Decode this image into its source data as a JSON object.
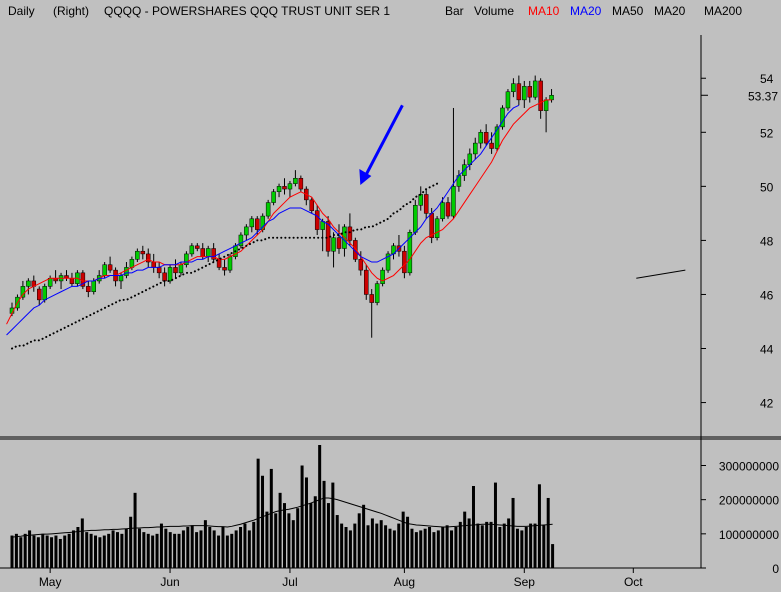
{
  "header": {
    "period": "Daily",
    "scale": "(Right)",
    "ticker": "QQQQ - POWERSHARES QQQ TRUST UNIT SER 1",
    "chart_kind": "Bar",
    "volume": "Volume",
    "studies": [
      {
        "label": "MA10",
        "color": "#ff0000"
      },
      {
        "label": "MA20",
        "color": "#0000ff"
      },
      {
        "label": "MA50",
        "color": "#000000"
      },
      {
        "label": "MA20",
        "color": "#000000"
      },
      {
        "label": "MA200",
        "color": "#000000"
      }
    ]
  },
  "colors": {
    "up": "#00cc00",
    "down": "#cc0000",
    "ma10": "#ff0000",
    "ma20": "#0000ff",
    "ma50": "#000000",
    "arrow": "#0000ff"
  },
  "chart_data": [
    {
      "type": "candlestick",
      "name": "price",
      "y_axis": {
        "ticks": [
          42,
          44,
          46,
          48,
          50,
          52,
          54
        ],
        "range": [
          40.8,
          55.6
        ],
        "last_label": "53.37"
      },
      "x_axis": {
        "labels": [
          {
            "text": "May",
            "idx": 7
          },
          {
            "text": "Jun",
            "idx": 29
          },
          {
            "text": "Jul",
            "idx": 51
          },
          {
            "text": "Aug",
            "idx": 72
          },
          {
            "text": "Sep",
            "idx": 94
          },
          {
            "text": "Oct",
            "idx": 114
          }
        ]
      },
      "candles": [
        {
          "o": 45.3,
          "h": 45.7,
          "l": 45.2,
          "c": 45.5
        },
        {
          "o": 45.5,
          "h": 46.0,
          "l": 45.4,
          "c": 45.9
        },
        {
          "o": 45.9,
          "h": 46.5,
          "l": 45.8,
          "c": 46.3
        },
        {
          "o": 46.3,
          "h": 46.6,
          "l": 46.0,
          "c": 46.5
        },
        {
          "o": 46.5,
          "h": 46.7,
          "l": 46.1,
          "c": 46.3
        },
        {
          "o": 46.2,
          "h": 46.3,
          "l": 45.6,
          "c": 45.8
        },
        {
          "o": 45.8,
          "h": 46.4,
          "l": 45.7,
          "c": 46.3
        },
        {
          "o": 46.3,
          "h": 46.7,
          "l": 46.2,
          "c": 46.6
        },
        {
          "o": 46.6,
          "h": 46.9,
          "l": 46.4,
          "c": 46.5
        },
        {
          "o": 46.5,
          "h": 46.8,
          "l": 46.2,
          "c": 46.7
        },
        {
          "o": 46.7,
          "h": 46.9,
          "l": 46.5,
          "c": 46.6
        },
        {
          "o": 46.6,
          "h": 46.8,
          "l": 46.3,
          "c": 46.4
        },
        {
          "o": 46.4,
          "h": 46.9,
          "l": 46.3,
          "c": 46.8
        },
        {
          "o": 46.8,
          "h": 46.9,
          "l": 46.2,
          "c": 46.3
        },
        {
          "o": 46.3,
          "h": 46.5,
          "l": 45.9,
          "c": 46.1
        },
        {
          "o": 46.1,
          "h": 46.6,
          "l": 46.0,
          "c": 46.5
        },
        {
          "o": 46.5,
          "h": 46.9,
          "l": 46.4,
          "c": 46.7
        },
        {
          "o": 46.7,
          "h": 47.2,
          "l": 46.6,
          "c": 47.1
        },
        {
          "o": 47.1,
          "h": 47.4,
          "l": 46.8,
          "c": 46.9
        },
        {
          "o": 46.9,
          "h": 47.0,
          "l": 46.3,
          "c": 46.5
        },
        {
          "o": 46.5,
          "h": 46.8,
          "l": 46.2,
          "c": 46.7
        },
        {
          "o": 46.7,
          "h": 47.2,
          "l": 46.6,
          "c": 47.0
        },
        {
          "o": 47.0,
          "h": 47.4,
          "l": 46.9,
          "c": 47.3
        },
        {
          "o": 47.3,
          "h": 47.7,
          "l": 47.2,
          "c": 47.6
        },
        {
          "o": 47.6,
          "h": 47.8,
          "l": 47.3,
          "c": 47.5
        },
        {
          "o": 47.5,
          "h": 47.7,
          "l": 47.0,
          "c": 47.2
        },
        {
          "o": 47.2,
          "h": 47.5,
          "l": 46.8,
          "c": 47.0
        },
        {
          "o": 47.0,
          "h": 47.2,
          "l": 46.6,
          "c": 46.8
        },
        {
          "o": 46.8,
          "h": 47.0,
          "l": 46.3,
          "c": 46.5
        },
        {
          "o": 46.5,
          "h": 47.1,
          "l": 46.4,
          "c": 47.0
        },
        {
          "o": 47.0,
          "h": 47.3,
          "l": 46.6,
          "c": 46.8
        },
        {
          "o": 46.8,
          "h": 47.2,
          "l": 46.7,
          "c": 47.1
        },
        {
          "o": 47.1,
          "h": 47.6,
          "l": 47.0,
          "c": 47.5
        },
        {
          "o": 47.5,
          "h": 47.9,
          "l": 47.4,
          "c": 47.8
        },
        {
          "o": 47.8,
          "h": 47.9,
          "l": 47.6,
          "c": 47.7
        },
        {
          "o": 47.7,
          "h": 47.9,
          "l": 47.3,
          "c": 47.4
        },
        {
          "o": 47.4,
          "h": 47.8,
          "l": 47.2,
          "c": 47.7
        },
        {
          "o": 47.7,
          "h": 47.9,
          "l": 47.2,
          "c": 47.3
        },
        {
          "o": 47.3,
          "h": 47.5,
          "l": 46.9,
          "c": 47.0
        },
        {
          "o": 47.0,
          "h": 47.3,
          "l": 46.7,
          "c": 46.9
        },
        {
          "o": 46.9,
          "h": 47.5,
          "l": 46.8,
          "c": 47.4
        },
        {
          "o": 47.4,
          "h": 47.9,
          "l": 47.3,
          "c": 47.8
        },
        {
          "o": 47.8,
          "h": 48.3,
          "l": 47.7,
          "c": 48.2
        },
        {
          "o": 48.2,
          "h": 48.6,
          "l": 48.0,
          "c": 48.5
        },
        {
          "o": 48.5,
          "h": 48.9,
          "l": 48.3,
          "c": 48.8
        },
        {
          "o": 48.8,
          "h": 48.9,
          "l": 48.2,
          "c": 48.4
        },
        {
          "o": 48.4,
          "h": 49.0,
          "l": 48.3,
          "c": 48.9
        },
        {
          "o": 48.9,
          "h": 49.5,
          "l": 48.8,
          "c": 49.4
        },
        {
          "o": 49.4,
          "h": 49.9,
          "l": 49.3,
          "c": 49.8
        },
        {
          "o": 49.8,
          "h": 50.1,
          "l": 49.6,
          "c": 50.0
        },
        {
          "o": 50.0,
          "h": 50.3,
          "l": 49.7,
          "c": 49.9
        },
        {
          "o": 49.9,
          "h": 50.2,
          "l": 49.6,
          "c": 50.1
        },
        {
          "o": 50.1,
          "h": 50.6,
          "l": 50.0,
          "c": 50.3
        },
        {
          "o": 50.3,
          "h": 50.4,
          "l": 49.8,
          "c": 49.9
        },
        {
          "o": 49.9,
          "h": 50.0,
          "l": 49.3,
          "c": 49.5
        },
        {
          "o": 49.5,
          "h": 49.6,
          "l": 49.0,
          "c": 49.1
        },
        {
          "o": 49.1,
          "h": 49.3,
          "l": 48.2,
          "c": 48.4
        },
        {
          "o": 48.4,
          "h": 48.8,
          "l": 47.6,
          "c": 48.7
        },
        {
          "o": 48.7,
          "h": 48.9,
          "l": 47.4,
          "c": 47.6
        },
        {
          "o": 47.6,
          "h": 48.3,
          "l": 47.0,
          "c": 48.1
        },
        {
          "o": 48.1,
          "h": 48.6,
          "l": 47.5,
          "c": 47.7
        },
        {
          "o": 47.7,
          "h": 48.6,
          "l": 47.4,
          "c": 48.5
        },
        {
          "o": 48.5,
          "h": 49.0,
          "l": 47.8,
          "c": 48.0
        },
        {
          "o": 48.0,
          "h": 48.1,
          "l": 47.2,
          "c": 47.3
        },
        {
          "o": 47.3,
          "h": 47.6,
          "l": 46.7,
          "c": 46.9
        },
        {
          "o": 46.9,
          "h": 47.1,
          "l": 45.8,
          "c": 46.0
        },
        {
          "o": 46.0,
          "h": 46.2,
          "l": 44.4,
          "c": 45.7
        },
        {
          "o": 45.7,
          "h": 46.5,
          "l": 45.6,
          "c": 46.4
        },
        {
          "o": 46.4,
          "h": 47.0,
          "l": 46.3,
          "c": 46.9
        },
        {
          "o": 46.9,
          "h": 47.6,
          "l": 46.8,
          "c": 47.5
        },
        {
          "o": 47.5,
          "h": 47.9,
          "l": 47.3,
          "c": 47.8
        },
        {
          "o": 47.8,
          "h": 48.2,
          "l": 47.4,
          "c": 47.6
        },
        {
          "o": 47.6,
          "h": 47.8,
          "l": 46.6,
          "c": 46.8
        },
        {
          "o": 46.8,
          "h": 48.4,
          "l": 46.7,
          "c": 48.3
        },
        {
          "o": 48.3,
          "h": 49.5,
          "l": 48.2,
          "c": 49.3
        },
        {
          "o": 49.3,
          "h": 50.0,
          "l": 49.1,
          "c": 49.7
        },
        {
          "o": 49.7,
          "h": 49.9,
          "l": 48.8,
          "c": 49.0
        },
        {
          "o": 49.0,
          "h": 49.2,
          "l": 47.9,
          "c": 48.1
        },
        {
          "o": 48.1,
          "h": 48.9,
          "l": 48.0,
          "c": 48.8
        },
        {
          "o": 48.8,
          "h": 49.6,
          "l": 48.7,
          "c": 49.4
        },
        {
          "o": 49.4,
          "h": 49.6,
          "l": 48.8,
          "c": 48.9
        },
        {
          "o": 48.9,
          "h": 52.9,
          "l": 48.8,
          "c": 50.0
        },
        {
          "o": 50.0,
          "h": 50.6,
          "l": 49.8,
          "c": 50.4
        },
        {
          "o": 50.4,
          "h": 51.0,
          "l": 50.2,
          "c": 50.8
        },
        {
          "o": 50.8,
          "h": 51.4,
          "l": 50.6,
          "c": 51.2
        },
        {
          "o": 51.2,
          "h": 51.8,
          "l": 51.0,
          "c": 51.6
        },
        {
          "o": 51.6,
          "h": 52.1,
          "l": 51.4,
          "c": 52.0
        },
        {
          "o": 52.0,
          "h": 52.3,
          "l": 51.5,
          "c": 51.6
        },
        {
          "o": 51.6,
          "h": 52.0,
          "l": 51.2,
          "c": 51.4
        },
        {
          "o": 51.4,
          "h": 52.3,
          "l": 51.3,
          "c": 52.2
        },
        {
          "o": 52.2,
          "h": 53.0,
          "l": 52.1,
          "c": 52.9
        },
        {
          "o": 52.9,
          "h": 53.6,
          "l": 52.8,
          "c": 53.5
        },
        {
          "o": 53.5,
          "h": 54.0,
          "l": 53.3,
          "c": 53.8
        },
        {
          "o": 53.8,
          "h": 54.1,
          "l": 53.0,
          "c": 53.2
        },
        {
          "o": 53.2,
          "h": 53.9,
          "l": 52.9,
          "c": 53.7
        },
        {
          "o": 53.7,
          "h": 53.9,
          "l": 53.1,
          "c": 53.3
        },
        {
          "o": 53.3,
          "h": 54.1,
          "l": 53.2,
          "c": 53.9
        },
        {
          "o": 53.9,
          "h": 54.0,
          "l": 52.5,
          "c": 52.8
        },
        {
          "o": 52.8,
          "h": 53.3,
          "l": 52.0,
          "c": 53.2
        },
        {
          "o": 53.2,
          "h": 53.6,
          "l": 53.1,
          "c": 53.37
        }
      ],
      "ma10": [
        44.9,
        45.3,
        45.7,
        46.0,
        46.2,
        46.3,
        46.4,
        46.5,
        46.6,
        46.6,
        46.6,
        46.6,
        46.6,
        46.6,
        46.5,
        46.5,
        46.5,
        46.6,
        46.7,
        46.7,
        46.7,
        46.8,
        46.9,
        47.0,
        47.1,
        47.2,
        47.3,
        47.2,
        47.2,
        47.1,
        47.1,
        47.1,
        47.1,
        47.2,
        47.3,
        47.4,
        47.4,
        47.4,
        47.4,
        47.3,
        47.3,
        47.4,
        47.5,
        47.6,
        47.8,
        48.0,
        48.2,
        48.4,
        48.7,
        49.0,
        49.2,
        49.4,
        49.6,
        49.7,
        49.8,
        49.7,
        49.6,
        49.3,
        49.0,
        48.8,
        48.5,
        48.3,
        48.1,
        47.9,
        47.7,
        47.4,
        47.1,
        46.8,
        46.6,
        46.5,
        46.6,
        46.7,
        46.9,
        47.1,
        47.3,
        47.6,
        47.9,
        48.1,
        48.2,
        48.3,
        48.4,
        48.6,
        48.8,
        49.1,
        49.4,
        49.7,
        50.0,
        50.3,
        50.6,
        50.9,
        51.3,
        51.7,
        52.0,
        52.3,
        52.5,
        52.7,
        52.9,
        53.0,
        53.1,
        53.2,
        53.2
      ],
      "ma20": [
        44.5,
        44.7,
        44.9,
        45.1,
        45.3,
        45.5,
        45.6,
        45.8,
        45.9,
        46.0,
        46.1,
        46.2,
        46.3,
        46.3,
        46.4,
        46.5,
        46.5,
        46.6,
        46.6,
        46.7,
        46.7,
        46.7,
        46.8,
        46.8,
        46.9,
        46.9,
        47.0,
        47.0,
        47.0,
        47.1,
        47.1,
        47.1,
        47.2,
        47.2,
        47.2,
        47.3,
        47.3,
        47.4,
        47.4,
        47.5,
        47.6,
        47.7,
        47.8,
        47.9,
        48.0,
        48.1,
        48.3,
        48.5,
        48.7,
        48.8,
        49.0,
        49.1,
        49.2,
        49.2,
        49.2,
        49.1,
        49.0,
        48.9,
        48.7,
        48.6,
        48.4,
        48.2,
        48.0,
        47.8,
        47.6,
        47.4,
        47.3,
        47.2,
        47.2,
        47.3,
        47.4,
        47.5,
        47.7,
        47.9,
        48.1,
        48.3,
        48.5,
        48.8,
        49.0,
        49.2,
        49.5,
        49.8,
        50.1,
        50.4,
        50.6,
        50.8,
        51.0,
        51.2,
        51.5,
        51.8,
        52.1,
        52.4,
        52.7,
        52.9,
        53.0
      ],
      "ma50": [
        44.0,
        44.1,
        44.1,
        44.2,
        44.3,
        44.3,
        44.4,
        44.5,
        44.6,
        44.7,
        44.8,
        44.9,
        45.0,
        45.1,
        45.2,
        45.3,
        45.4,
        45.5,
        45.6,
        45.7,
        45.8,
        45.8,
        45.9,
        46.0,
        46.1,
        46.2,
        46.3,
        46.4,
        46.5,
        46.5,
        46.6,
        46.7,
        46.8,
        46.8,
        46.9,
        47.0,
        47.1,
        47.2,
        47.3,
        47.4,
        47.5,
        47.6,
        47.7,
        47.8,
        47.9,
        48.0,
        48.0,
        48.1,
        48.1,
        48.1,
        48.1,
        48.1,
        48.1,
        48.1,
        48.1,
        48.1,
        48.1,
        48.1,
        48.1,
        48.2,
        48.2,
        48.3,
        48.3,
        48.4,
        48.4,
        48.5,
        48.5,
        48.6,
        48.7,
        48.8,
        49.0,
        49.1,
        49.3,
        49.4,
        49.6,
        49.7,
        49.9,
        50.0,
        50.1
      ],
      "ma_long": [
        {
          "idx": 114,
          "y": 46.6
        },
        {
          "idx": 123,
          "y": 46.9
        }
      ],
      "annotation": {
        "kind": "arrow",
        "from": {
          "idx": 72,
          "y": 53.0
        },
        "to": {
          "idx": 63,
          "y": 49.9
        }
      }
    },
    {
      "type": "bar",
      "name": "volume",
      "y_axis": {
        "ticks": [
          0,
          100000000,
          200000000,
          300000000
        ],
        "labels": [
          "0",
          "100000000",
          "200000000",
          "300000000"
        ],
        "range": [
          0,
          360000000
        ]
      },
      "values": [
        95,
        100,
        90,
        100,
        110,
        95,
        90,
        100,
        95,
        90,
        95,
        85,
        95,
        100,
        110,
        120,
        145,
        105,
        100,
        95,
        90,
        95,
        100,
        110,
        105,
        100,
        115,
        150,
        220,
        115,
        105,
        100,
        95,
        100,
        130,
        115,
        105,
        100,
        100,
        110,
        120,
        125,
        105,
        110,
        140,
        120,
        110,
        95,
        120,
        95,
        100,
        110,
        120,
        130,
        110,
        135,
        320,
        270,
        165,
        290,
        160,
        220,
        190,
        160,
        140,
        175,
        300,
        265,
        190,
        210,
        360,
        255,
        190,
        250,
        155,
        130,
        120,
        110,
        130,
        160,
        185,
        125,
        145,
        130,
        140,
        125,
        115,
        110,
        130,
        165,
        150,
        115,
        105,
        110,
        115,
        120,
        105,
        110,
        120,
        125,
        110,
        120,
        135,
        165,
        145,
        240,
        130,
        125,
        135,
        135,
        250,
        120,
        130,
        145,
        205,
        115,
        110,
        120,
        130,
        130,
        245,
        125,
        205,
        70
      ],
      "ma": [
        90,
        92,
        93,
        95,
        96,
        97,
        98,
        99,
        99,
        100,
        101,
        102,
        103,
        104,
        105,
        107,
        108,
        109,
        110,
        110,
        111,
        112,
        112,
        113,
        113,
        114,
        115,
        116,
        117,
        117,
        118,
        118,
        119,
        120,
        120,
        121,
        122,
        122,
        122,
        123,
        123,
        124,
        124,
        124,
        124,
        123,
        122,
        121,
        121,
        120,
        122,
        125,
        128,
        132,
        136,
        140,
        145,
        150,
        155,
        160,
        165,
        168,
        170,
        172,
        175,
        178,
        182,
        186,
        190,
        195,
        200,
        205,
        205,
        203,
        200,
        196,
        192,
        188,
        184,
        180,
        176,
        172,
        168,
        164,
        160,
        155,
        150,
        145,
        140,
        135,
        130,
        128,
        126,
        125,
        124,
        123,
        122,
        121,
        120,
        120,
        121,
        122,
        123,
        124,
        125,
        126,
        127,
        128,
        128,
        128,
        127,
        126,
        125,
        124,
        123,
        122,
        122,
        122,
        123,
        124,
        125,
        126,
        127,
        128
      ],
      "unit": "millions"
    }
  ]
}
